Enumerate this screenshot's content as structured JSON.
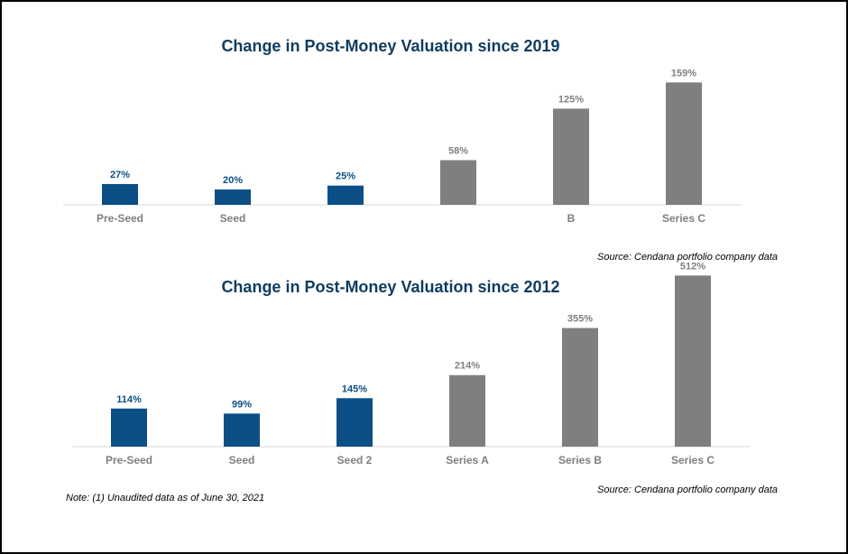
{
  "colors": {
    "blue": "#0b4f86",
    "gray": "#7f7f7f",
    "title": "#0f3b5f",
    "axis": "#d9d9d9"
  },
  "chart_data": [
    {
      "type": "bar",
      "title": "Change in Post-Money Valuation since 2019",
      "categories": [
        "Pre-Seed",
        "Seed",
        "",
        "",
        "B",
        "Series C"
      ],
      "values": [
        27,
        20,
        25,
        58,
        125,
        159
      ],
      "value_labels": [
        "27%",
        "20%",
        "25%",
        "58%",
        "125%",
        "159%"
      ],
      "bar_colors": [
        "blue",
        "blue",
        "blue",
        "gray",
        "gray",
        "gray"
      ],
      "ylim": [
        0,
        170
      ],
      "grid": false,
      "source": "Source:  Cendana portfolio company data"
    },
    {
      "type": "bar",
      "title": "Change in Post-Money Valuation since 2012",
      "categories": [
        "Pre-Seed",
        "Seed",
        "Seed 2",
        "Series A",
        "Series B",
        "Series C"
      ],
      "values": [
        114,
        99,
        145,
        214,
        355,
        512
      ],
      "value_labels": [
        "114%",
        "99%",
        "145%",
        "214%",
        "355%",
        "512%"
      ],
      "bar_colors": [
        "blue",
        "blue",
        "blue",
        "gray",
        "gray",
        "gray"
      ],
      "ylim": [
        0,
        540
      ],
      "grid": false,
      "source": "Source:  Cendana portfolio company data"
    }
  ],
  "note": "Note:  (1) Unaudited data as of June 30, 2021"
}
